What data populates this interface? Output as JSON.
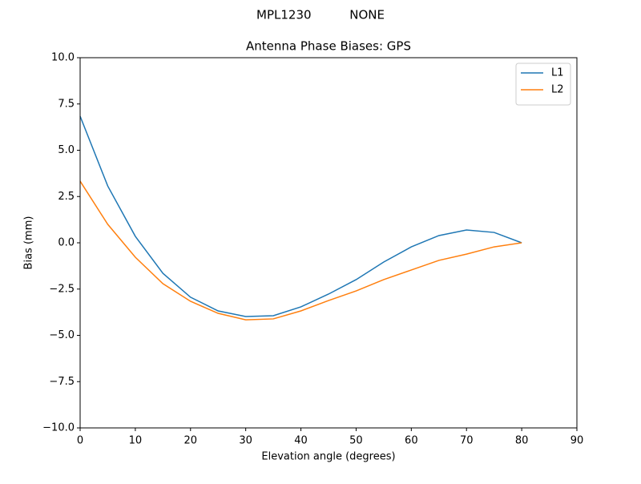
{
  "chart_data": {
    "type": "line",
    "suptitle": "MPL1230          NONE",
    "title": "Antenna Phase Biases: GPS",
    "xlabel": "Elevation angle (degrees)",
    "ylabel": "Bias (mm)",
    "x": [
      0,
      5,
      10,
      15,
      20,
      25,
      30,
      35,
      40,
      45,
      50,
      55,
      60,
      65,
      70,
      75,
      80
    ],
    "series": [
      {
        "name": "L1",
        "color": "#1f77b4",
        "values": [
          6.84,
          3.07,
          0.35,
          -1.65,
          -2.94,
          -3.68,
          -3.98,
          -3.94,
          -3.46,
          -2.77,
          -1.99,
          -1.04,
          -0.22,
          0.39,
          0.69,
          0.56,
          0
        ]
      },
      {
        "name": "L2",
        "color": "#ff7f0e",
        "values": [
          3.33,
          1.0,
          -0.78,
          -2.21,
          -3.16,
          -3.81,
          -4.16,
          -4.11,
          -3.68,
          -3.12,
          -2.6,
          -1.99,
          -1.47,
          -0.95,
          -0.61,
          -0.22,
          0
        ]
      }
    ],
    "xlim": [
      0,
      90
    ],
    "xticks": [
      0,
      10,
      20,
      30,
      40,
      50,
      60,
      70,
      80,
      90
    ],
    "ylim": [
      -10,
      10
    ],
    "yticks": [
      {
        "value": -10,
        "label": "−10.0"
      },
      {
        "value": -7.5,
        "label": "−7.5"
      },
      {
        "value": -5,
        "label": "−5.0"
      },
      {
        "value": -2.5,
        "label": "−2.5"
      },
      {
        "value": 0,
        "label": "0.0"
      },
      {
        "value": 2.5,
        "label": "2.5"
      },
      {
        "value": 5,
        "label": "5.0"
      },
      {
        "value": 7.5,
        "label": "7.5"
      },
      {
        "value": 10,
        "label": "10.0"
      }
    ],
    "legend": "upper right",
    "grid": false
  }
}
